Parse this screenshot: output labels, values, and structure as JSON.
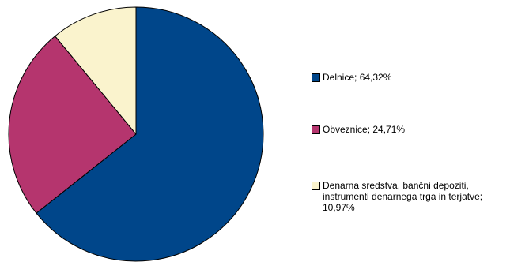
{
  "chart_data": {
    "type": "pie",
    "title": "",
    "slices": [
      {
        "label": "Delnice; 64,32%",
        "value": 64.32,
        "color": "#00468A"
      },
      {
        "label": "Obveznice; 24,71%",
        "value": 24.71,
        "color": "#B5356E"
      },
      {
        "label": "Denarna sredstva, bančni depoziti, instrumenti denarnega trga in terjatve; 10,97%",
        "value": 10.97,
        "color": "#FAF3CD"
      }
    ],
    "start_angle_deg": 0,
    "direction": "clockwise",
    "legend_position": "right",
    "slice_outline_color": "#000000"
  }
}
